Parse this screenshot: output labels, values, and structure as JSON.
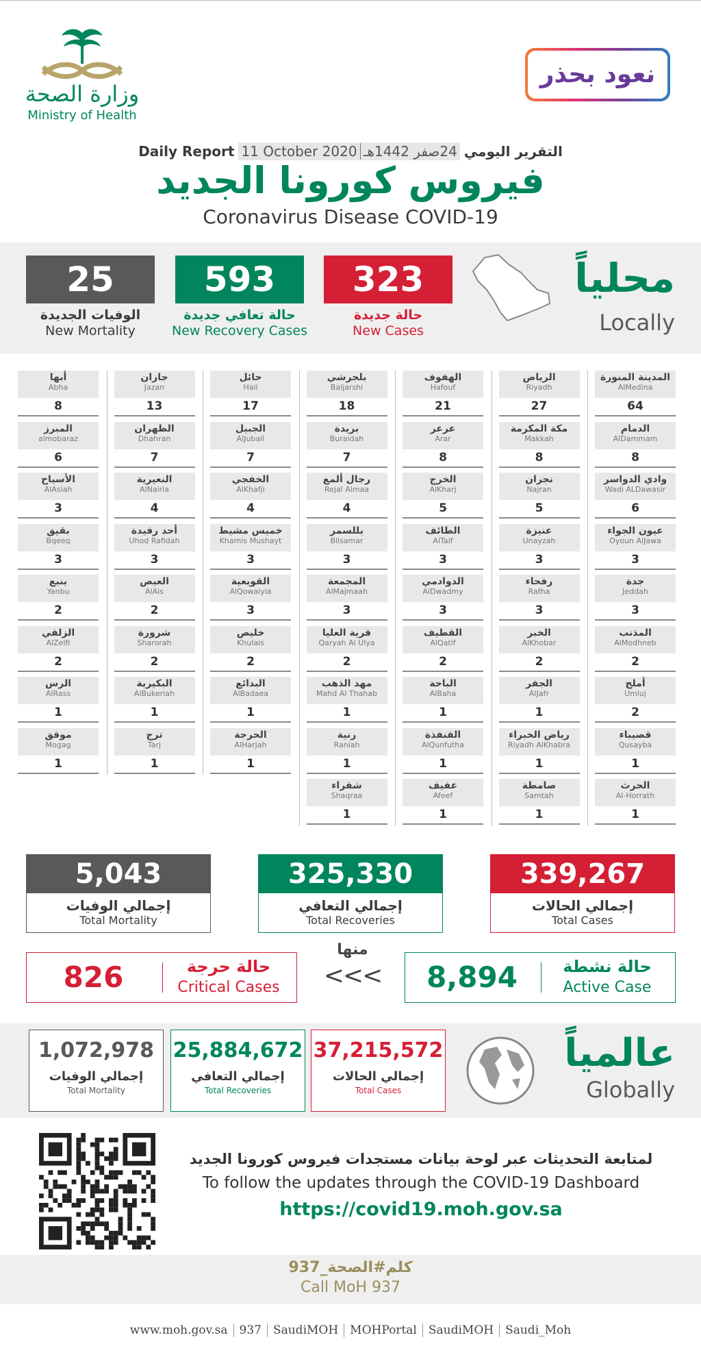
{
  "header": {
    "logo_ar": "وزارة الصحة",
    "logo_en": "Ministry of Health",
    "campaign": "نعود بحذر"
  },
  "report": {
    "label_ar": "التقرير اليومي",
    "label_en": "Daily Report",
    "date_hijri": "24صفر 1442هـ",
    "date": "11 October 2020",
    "title_ar": "فيروس كورونا الجديد",
    "title_en": "Coronavirus Disease COVID-19"
  },
  "locally": {
    "title_ar": "محلياً",
    "title_en": "Locally",
    "stats": [
      {
        "value": "323",
        "label_ar": "حالة جديدة",
        "label_en": "New Cases"
      },
      {
        "value": "593",
        "label_ar": "حالة تعافي جديدة",
        "label_en": "New Recovery Cases"
      },
      {
        "value": "25",
        "label_ar": "الوفيات الجديدة",
        "label_en": "New Mortality"
      }
    ]
  },
  "cities": {
    "columns": [
      [
        {
          "ar": "المدينة المنورة",
          "en": "AlMedina",
          "cases": 64
        },
        {
          "ar": "الدمام",
          "en": "AlDammam",
          "cases": 8
        },
        {
          "ar": "وادي الدواسر",
          "en": "Wadi ALDawasir",
          "cases": 6
        },
        {
          "ar": "عيون الجواء",
          "en": "Oyoun AlJawa",
          "cases": 3
        },
        {
          "ar": "جدة",
          "en": "Jeddah",
          "cases": 3
        },
        {
          "ar": "المذنب",
          "en": "AlModhneb",
          "cases": 2
        },
        {
          "ar": "أملج",
          "en": "Umluj",
          "cases": 2
        },
        {
          "ar": "قصيباء",
          "en": "Qusayba",
          "cases": 1
        },
        {
          "ar": "الحرث",
          "en": "Al-Horrath",
          "cases": 1
        }
      ],
      [
        {
          "ar": "الرياض",
          "en": "Riyadh",
          "cases": 27
        },
        {
          "ar": "مكة المكرمة",
          "en": "Makkah",
          "cases": 8
        },
        {
          "ar": "نجران",
          "en": "Najran",
          "cases": 5
        },
        {
          "ar": "عنيزة",
          "en": "Unayzah",
          "cases": 3
        },
        {
          "ar": "رفحاء",
          "en": "Rafha",
          "cases": 3
        },
        {
          "ar": "الخبر",
          "en": "AlKhobar",
          "cases": 2
        },
        {
          "ar": "الجفر",
          "en": "AlJafr",
          "cases": 1
        },
        {
          "ar": "رياض الخبراء",
          "en": "Riyadh AlKhabra",
          "cases": 1
        },
        {
          "ar": "صامطة",
          "en": "Samtah",
          "cases": 1
        }
      ],
      [
        {
          "ar": "الهفوف",
          "en": "Hafouf",
          "cases": 21
        },
        {
          "ar": "عرعر",
          "en": "Arar",
          "cases": 8
        },
        {
          "ar": "الخرج",
          "en": "AlKharj",
          "cases": 5
        },
        {
          "ar": "الطائف",
          "en": "AlTaif",
          "cases": 3
        },
        {
          "ar": "الدوادمي",
          "en": "AlDwadmy",
          "cases": 3
        },
        {
          "ar": "القطيف",
          "en": "AlQatif",
          "cases": 2
        },
        {
          "ar": "الباحة",
          "en": "AlBaha",
          "cases": 1
        },
        {
          "ar": "القنفذة",
          "en": "AlQunfutha",
          "cases": 1
        },
        {
          "ar": "عفيف",
          "en": "Afeef",
          "cases": 1
        }
      ],
      [
        {
          "ar": "بلجرشي",
          "en": "Baljarshi",
          "cases": 18
        },
        {
          "ar": "بريدة",
          "en": "Buraidah",
          "cases": 7
        },
        {
          "ar": "رجال ألمع",
          "en": "Rejal Almaa",
          "cases": 4
        },
        {
          "ar": "بللسمر",
          "en": "Bllsamar",
          "cases": 3
        },
        {
          "ar": "المجمعة",
          "en": "AlMajmaah",
          "cases": 3
        },
        {
          "ar": "قرية العليا",
          "en": "Qaryah Al Ulya",
          "cases": 2
        },
        {
          "ar": "مهد الذهب",
          "en": "Mahd Al Thahab",
          "cases": 1
        },
        {
          "ar": "رنية",
          "en": "Raniah",
          "cases": 1
        },
        {
          "ar": "شقراء",
          "en": "Shaqraa",
          "cases": 1
        }
      ],
      [
        {
          "ar": "حائل",
          "en": "Hail",
          "cases": 17
        },
        {
          "ar": "الجبيل",
          "en": "AlJubail",
          "cases": 7
        },
        {
          "ar": "الخفجي",
          "en": "AlKhafji",
          "cases": 4
        },
        {
          "ar": "خميس مشيط",
          "en": "Khamis Mushayt",
          "cases": 3
        },
        {
          "ar": "القويعية",
          "en": "AlQowaiyia",
          "cases": 3
        },
        {
          "ar": "خليص",
          "en": "Khulais",
          "cases": 2
        },
        {
          "ar": "البدائع",
          "en": "AlBadaea",
          "cases": 1
        },
        {
          "ar": "الحرجة",
          "en": "AlHarjah",
          "cases": 1
        }
      ],
      [
        {
          "ar": "جازان",
          "en": "Jazan",
          "cases": 13
        },
        {
          "ar": "الظهران",
          "en": "Dhahran",
          "cases": 7
        },
        {
          "ar": "النعيرية",
          "en": "AlNairia",
          "cases": 4
        },
        {
          "ar": "أحد رفيدة",
          "en": "Uhod Rafidah",
          "cases": 3
        },
        {
          "ar": "العيص",
          "en": "AlAis",
          "cases": 2
        },
        {
          "ar": "شرورة",
          "en": "Sharorah",
          "cases": 2
        },
        {
          "ar": "البكيرية",
          "en": "AlBukeriah",
          "cases": 1
        },
        {
          "ar": "ترج",
          "en": "Tarj",
          "cases": 1
        }
      ],
      [
        {
          "ar": "أبها",
          "en": "Abha",
          "cases": 8
        },
        {
          "ar": "المبرز",
          "en": "almobaraz",
          "cases": 6
        },
        {
          "ar": "الأسياح",
          "en": "AlAsiah",
          "cases": 3
        },
        {
          "ar": "بقيق",
          "en": "Bqeeq",
          "cases": 3
        },
        {
          "ar": "ينبع",
          "en": "Yanbu",
          "cases": 2
        },
        {
          "ar": "الزلفي",
          "en": "AlZelfi",
          "cases": 2
        },
        {
          "ar": "الرس",
          "en": "AlRass",
          "cases": 1
        },
        {
          "ar": "موقق",
          "en": "Mogag",
          "cases": 1
        }
      ]
    ]
  },
  "totals": [
    {
      "value": "339,267",
      "label_ar": "إجمالي الحالات",
      "label_en": "Total Cases"
    },
    {
      "value": "325,330",
      "label_ar": "إجمالي التعافي",
      "label_en": "Total Recoveries"
    },
    {
      "value": "5,043",
      "label_ar": "إجمالي الوفيات",
      "label_en": "Total Mortality"
    }
  ],
  "of_which": {
    "label": "منها",
    "arrows": "<<<"
  },
  "active": {
    "value": "8,894",
    "label_ar": "حالة نشطة",
    "label_en": "Active Case"
  },
  "critical": {
    "value": "826",
    "label_ar": "حالة حرجة",
    "label_en": "Critical Cases"
  },
  "globally": {
    "title_ar": "عالمياً",
    "title_en": "Globally",
    "stats": [
      {
        "value": "37,215,572",
        "label_ar": "إجمالي الحالات",
        "label_en": "Total Cases"
      },
      {
        "value": "25,884,672",
        "label_ar": "إجمالي التعافي",
        "label_en": "Total Recoveries"
      },
      {
        "value": "1,072,978",
        "label_ar": "إجمالي الوفيات",
        "label_en": "Total Mortality"
      }
    ]
  },
  "dashboard": {
    "text_ar": "لمتابعة التحديثات عبر لوحة بيانات مستجدات فيروس كورونا الجديد",
    "text_en": "To follow the updates through the COVID-19 Dashboard",
    "url": "https://covid19.moh.gov.sa"
  },
  "call": {
    "ar": "كلم#الصحة_937",
    "en": "Call MoH 937"
  },
  "footer": {
    "links": [
      "www.moh.gov.sa",
      "937",
      "SaudiMOH",
      "MOHPortal",
      "SaudiMOH",
      "Saudi_Moh"
    ]
  }
}
